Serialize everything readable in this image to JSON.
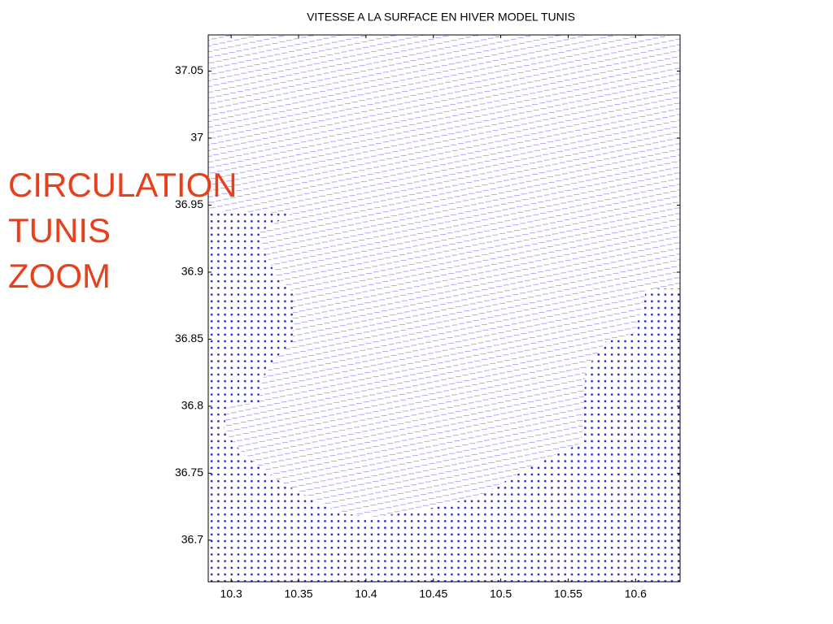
{
  "slide": {
    "title_lines": [
      "CIRCULATION",
      "TUNIS",
      "ZOOM"
    ]
  },
  "chart_data": {
    "type": "quiver",
    "title": "VITESSE A LA SURFACE EN HIVER  MODEL TUNIS",
    "xlim": [
      10.283,
      10.633
    ],
    "ylim": [
      36.669,
      37.077
    ],
    "xticks": [
      10.3,
      10.35,
      10.4,
      10.45,
      10.5,
      10.55,
      10.6
    ],
    "yticks": [
      36.7,
      36.75,
      36.8,
      36.85,
      36.9,
      36.95,
      37,
      37.05
    ],
    "color": "#3a3ae0"
  }
}
